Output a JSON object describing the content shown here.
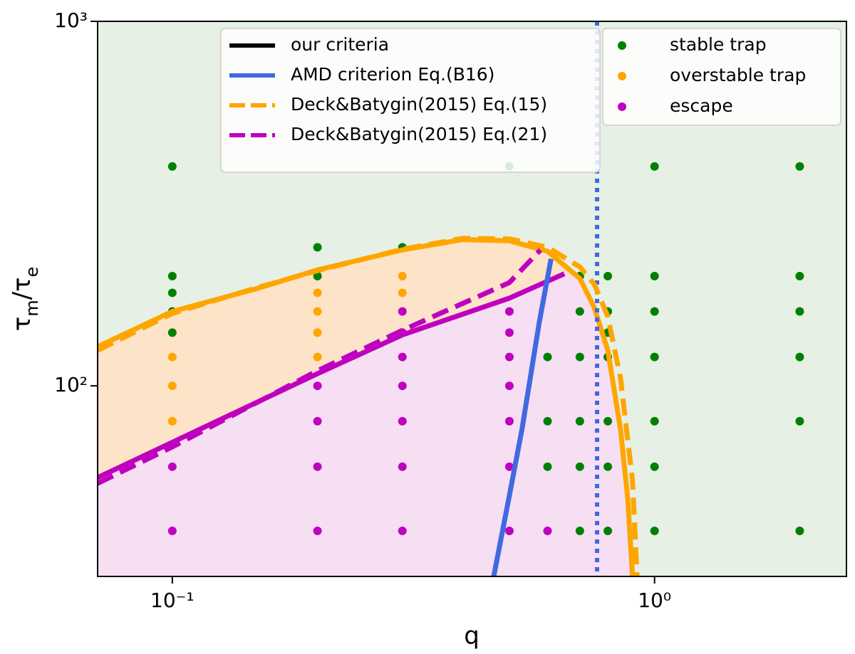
{
  "chart_data": {
    "type": "scatter",
    "xlabel": "q",
    "ylabel": [
      {
        "text": "τ"
      },
      {
        "text": "m",
        "sub": true
      },
      {
        "text": "/τ"
      },
      {
        "text": "e",
        "sub": true
      }
    ],
    "xlim": [
      0.07,
      2.5
    ],
    "ylim": [
      30,
      1000
    ],
    "xscale": "log",
    "yscale": "log",
    "xticks": [
      {
        "value": 0.1,
        "label": "10⁻¹"
      },
      {
        "value": 1,
        "label": "10⁰"
      }
    ],
    "yticks": [
      {
        "value": 100,
        "label": "10²"
      },
      {
        "value": 1000,
        "label": "10³"
      }
    ],
    "criteria": {
      "name": "our criteria",
      "color": "#000000",
      "curves": [
        {
          "color": "#ffa500",
          "x": [
            0.07,
            0.1,
            0.15,
            0.2,
            0.3,
            0.4,
            0.5,
            0.6,
            0.7,
            0.75,
            0.8,
            0.85,
            0.88,
            0.9
          ],
          "values": [
            128,
            160,
            185,
            208,
            236,
            252,
            250,
            234,
            197,
            164,
            125,
            76,
            49,
            30
          ]
        },
        {
          "color": "#bf00bf",
          "x": [
            0.07,
            0.1,
            0.2,
            0.3,
            0.5,
            0.65
          ],
          "values": [
            56,
            70,
            108,
            138,
            174,
            203
          ]
        }
      ]
    },
    "series": [
      {
        "name": "AMD criterion Eq.(B16)",
        "color": "#4169e1",
        "style": "solid",
        "x": [
          0.464,
          0.5,
          0.531,
          0.577,
          0.61
        ],
        "values": [
          30,
          50,
          76,
          150,
          223
        ],
        "vline_x": 0.76
      },
      {
        "name": "Deck&Batygin(2015) Eq.(15)",
        "color": "#ffa500",
        "style": "dashed",
        "x": [
          0.07,
          0.1,
          0.15,
          0.2,
          0.3,
          0.4,
          0.5,
          0.6,
          0.7,
          0.75,
          0.8,
          0.85,
          0.9,
          0.92
        ],
        "values": [
          125,
          158,
          186,
          207,
          237,
          254,
          253,
          240,
          212,
          190,
          155,
          105,
          55,
          30
        ]
      },
      {
        "name": "Deck&Batygin(2015) Eq.(21)",
        "color": "#bf00bf",
        "style": "dashed",
        "x": [
          0.07,
          0.1,
          0.2,
          0.3,
          0.5,
          0.58
        ],
        "values": [
          54,
          68,
          110,
          142,
          192,
          236
        ]
      }
    ],
    "points": [
      {
        "name": "stable trap",
        "color": "#008000",
        "x": [
          0.1,
          0.1,
          0.1,
          0.1,
          0.1,
          0.2,
          0.2,
          0.3,
          0.5,
          0.6,
          0.6,
          0.6,
          0.7,
          0.7,
          0.7,
          0.7,
          0.7,
          0.7,
          0.8,
          0.8,
          0.8,
          0.8,
          0.8,
          0.8,
          0.8,
          1,
          1,
          1,
          1,
          1,
          1,
          1,
          2,
          2,
          2,
          2,
          2,
          2
        ],
        "values": [
          400,
          200,
          180,
          160,
          140,
          240,
          200,
          240,
          400,
          120,
          80,
          60,
          200,
          160,
          120,
          80,
          60,
          40,
          200,
          160,
          140,
          120,
          80,
          60,
          40,
          400,
          200,
          160,
          120,
          80,
          60,
          40,
          400,
          200,
          160,
          120,
          80,
          40
        ]
      },
      {
        "name": "overstable trap",
        "color": "#ffa500",
        "x": [
          0.1,
          0.1,
          0.1,
          0.2,
          0.2,
          0.2,
          0.2,
          0.3,
          0.3
        ],
        "values": [
          120,
          100,
          80,
          180,
          160,
          140,
          120,
          200,
          180
        ]
      },
      {
        "name": "escape",
        "color": "#bf00bf",
        "x": [
          0.1,
          0.1,
          0.2,
          0.2,
          0.2,
          0.2,
          0.3,
          0.3,
          0.3,
          0.3,
          0.3,
          0.3,
          0.3,
          0.5,
          0.5,
          0.5,
          0.5,
          0.5,
          0.5,
          0.5,
          0.6
        ],
        "values": [
          60,
          40,
          100,
          80,
          60,
          40,
          160,
          140,
          120,
          100,
          80,
          60,
          40,
          160,
          140,
          120,
          100,
          80,
          60,
          40,
          40
        ]
      }
    ]
  }
}
